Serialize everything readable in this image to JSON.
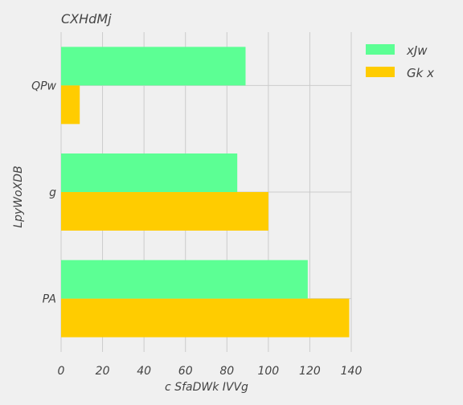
{
  "chart_data": {
    "type": "bar",
    "orientation": "horizontal",
    "title": "CXHdMj",
    "xlabel": "c SfaDWk IVVg",
    "ylabel": "LpyWoXDB",
    "categories": [
      "QPw",
      "g",
      "PA"
    ],
    "series": [
      {
        "name": "xJw",
        "values": [
          89,
          85,
          119
        ],
        "color": "#5cff94"
      },
      {
        "name": "Gk x",
        "values": [
          9,
          100,
          139
        ],
        "color": "#ffcc00"
      }
    ],
    "xlim": [
      0,
      140
    ],
    "xticks": [
      0,
      20,
      40,
      60,
      80,
      100,
      120,
      140
    ],
    "grid": true,
    "legend_position": "top-right",
    "background_color": "#f0f0f0"
  }
}
